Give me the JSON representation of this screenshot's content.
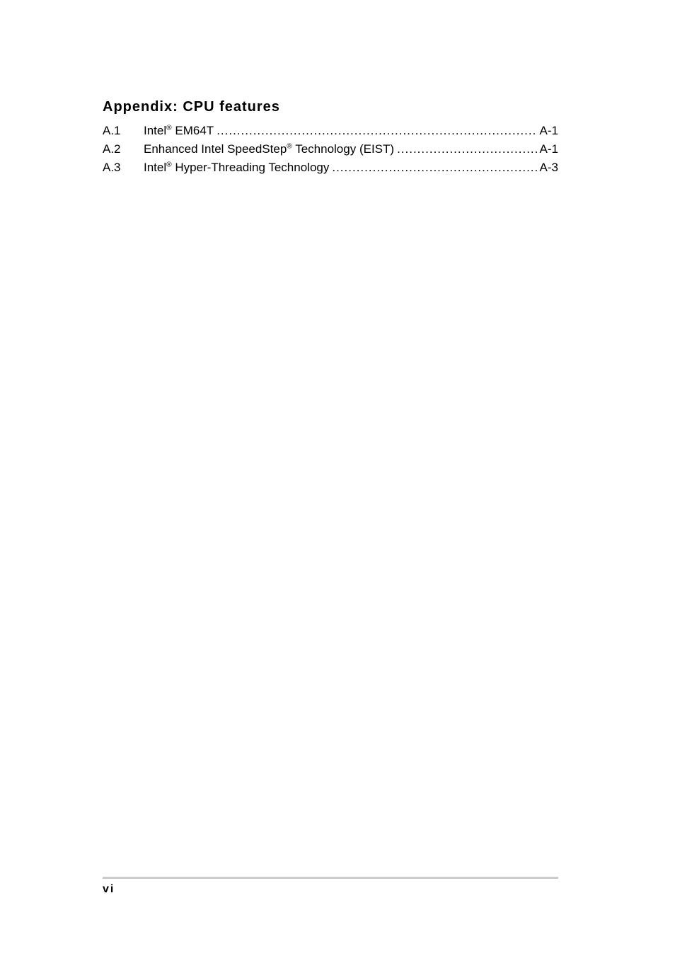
{
  "heading": "Appendix: CPU features",
  "toc": [
    {
      "number": "A.1",
      "title_before_reg": "Intel",
      "title_after_reg": " EM64T ",
      "page": "A-1"
    },
    {
      "number": "A.2",
      "title_before_reg": "Enhanced Intel SpeedStep",
      "title_after_reg": " Technology (EIST) ",
      "page": "A-1"
    },
    {
      "number": "A.3",
      "title_before_reg": "Intel",
      "title_after_reg": " Hyper-Threading Technology ",
      "page": "A-3"
    }
  ],
  "dots": ".........................................................................................................",
  "reg_symbol": "®",
  "page_number": "vi",
  "colors": {
    "text": "#000000",
    "background": "#ffffff",
    "rule": "#cccccc"
  },
  "typography": {
    "heading_fontsize": 20,
    "body_fontsize": 17,
    "heading_weight": "bold"
  }
}
